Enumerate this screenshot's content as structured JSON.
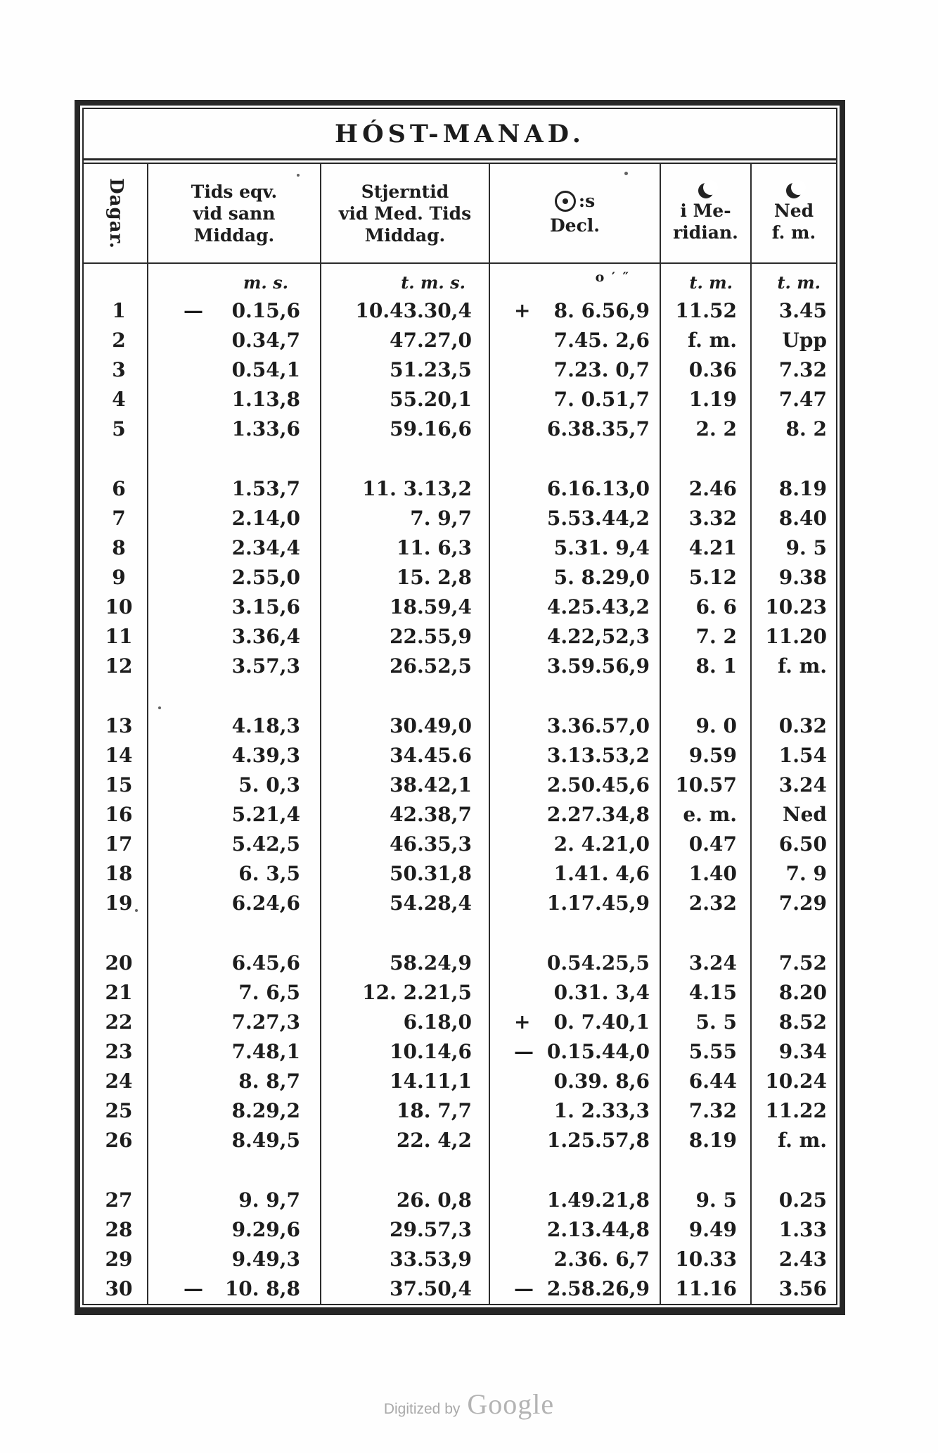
{
  "title": "HÓST-MANAD.",
  "header": {
    "day": "Dagar.",
    "eqv": [
      "Tids eqv.",
      "vid sann",
      "Middag."
    ],
    "st": [
      "Stjerntid",
      "vid Med. Tids",
      "Middag."
    ],
    "decl": {
      "sun_suffix": ":s",
      "label": "Decl."
    },
    "mer": [
      "i Me-",
      "ridian."
    ],
    "ned": [
      "Ned",
      "f. m."
    ]
  },
  "units": {
    "eqv": "m. s.",
    "st": "t. m. s.",
    "decl": "o ′ ″",
    "mer": "t. m.",
    "ned": "t. m."
  },
  "table": {
    "rows": [
      {
        "day": "1",
        "eqv_sign": "—",
        "eqv": "0.15,6",
        "st": "10.43.30,4",
        "decl_sign": "+",
        "decl": "8. 6.56,9",
        "mer": "11.52",
        "ned": "3.45"
      },
      {
        "day": "2",
        "eqv": "0.34,7",
        "st": "47.27,0",
        "decl": "7.45. 2,6",
        "mer": "f. m.",
        "ned": "Upp"
      },
      {
        "day": "3",
        "eqv": "0.54,1",
        "st": "51.23,5",
        "decl": "7.23. 0,7",
        "mer": "0.36",
        "ned": "7.32"
      },
      {
        "day": "4",
        "eqv": "1.13,8",
        "st": "55.20,1",
        "decl": "7. 0.51,7",
        "mer": "1.19",
        "ned": "7.47"
      },
      {
        "day": "5",
        "eqv": "1.33,6",
        "st": "59.16,6",
        "decl": "6.38.35,7",
        "mer": "2. 2",
        "ned": "8. 2"
      },
      {
        "day": "6",
        "gap_before": true,
        "eqv": "1.53,7",
        "st": "11. 3.13,2",
        "decl": "6.16.13,0",
        "mer": "2.46",
        "ned": "8.19"
      },
      {
        "day": "7",
        "eqv": "2.14,0",
        "st": "7. 9,7",
        "decl": "5.53.44,2",
        "mer": "3.32",
        "ned": "8.40"
      },
      {
        "day": "8",
        "eqv": "2.34,4",
        "st": "11. 6,3",
        "decl": "5.31. 9,4",
        "mer": "4.21",
        "ned": "9. 5"
      },
      {
        "day": "9",
        "eqv": "2.55,0",
        "st": "15. 2,8",
        "decl": "5. 8.29,0",
        "mer": "5.12",
        "ned": "9.38"
      },
      {
        "day": "10",
        "eqv": "3.15,6",
        "st": "18.59,4",
        "decl": "4.25.43,2",
        "mer": "6. 6",
        "ned": "10.23"
      },
      {
        "day": "11",
        "eqv": "3.36,4",
        "st": "22.55,9",
        "decl": "4.22,52,3",
        "mer": "7. 2",
        "ned": "11.20"
      },
      {
        "day": "12",
        "eqv": "3.57,3",
        "st": "26.52,5",
        "decl": "3.59.56,9",
        "mer": "8. 1",
        "ned": "f. m."
      },
      {
        "day": "13",
        "gap_before": true,
        "eqv": "4.18,3",
        "st": "30.49,0",
        "decl": "3.36.57,0",
        "mer": "9. 0",
        "ned": "0.32"
      },
      {
        "day": "14",
        "eqv": "4.39,3",
        "st": "34.45.6",
        "decl": "3.13.53,2",
        "mer": "9.59",
        "ned": "1.54"
      },
      {
        "day": "15",
        "eqv": "5. 0,3",
        "st": "38.42,1",
        "decl": "2.50.45,6",
        "mer": "10.57",
        "ned": "3.24"
      },
      {
        "day": "16",
        "eqv": "5.21,4",
        "st": "42.38,7",
        "decl": "2.27.34,8",
        "mer": "e. m.",
        "ned": "Ned"
      },
      {
        "day": "17",
        "eqv": "5.42,5",
        "st": "46.35,3",
        "decl": "2. 4.21,0",
        "mer": "0.47",
        "ned": "6.50"
      },
      {
        "day": "18",
        "eqv": "6. 3,5",
        "st": "50.31,8",
        "decl": "1.41. 4,6",
        "mer": "1.40",
        "ned": "7. 9"
      },
      {
        "day": "19",
        "eqv": "6.24,6",
        "st": "54.28,4",
        "decl": "1.17.45,9",
        "mer": "2.32",
        "ned": "7.29"
      },
      {
        "day": "20",
        "gap_before": true,
        "eqv": "6.45,6",
        "st": "58.24,9",
        "decl": "0.54.25,5",
        "mer": "3.24",
        "ned": "7.52"
      },
      {
        "day": "21",
        "eqv": "7. 6,5",
        "st": "12. 2.21,5",
        "decl": "0.31. 3,4",
        "mer": "4.15",
        "ned": "8.20"
      },
      {
        "day": "22",
        "eqv": "7.27,3",
        "st": "6.18,0",
        "decl_sign": "+",
        "decl": "0. 7.40,1",
        "mer": "5. 5",
        "ned": "8.52"
      },
      {
        "day": "23",
        "eqv": "7.48,1",
        "st": "10.14,6",
        "decl_sign": "—",
        "decl": "0.15.44,0",
        "mer": "5.55",
        "ned": "9.34"
      },
      {
        "day": "24",
        "eqv": "8. 8,7",
        "st": "14.11,1",
        "decl": "0.39. 8,6",
        "mer": "6.44",
        "ned": "10.24"
      },
      {
        "day": "25",
        "eqv": "8.29,2",
        "st": "18. 7,7",
        "decl": "1. 2.33,3",
        "mer": "7.32",
        "ned": "11.22"
      },
      {
        "day": "26",
        "eqv": "8.49,5",
        "st": "22. 4,2",
        "decl": "1.25.57,8",
        "mer": "8.19",
        "ned": "f. m."
      },
      {
        "day": "27",
        "gap_before": true,
        "eqv": "9. 9,7",
        "st": "26. 0,8",
        "decl": "1.49.21,8",
        "mer": "9. 5",
        "ned": "0.25"
      },
      {
        "day": "28",
        "eqv": "9.29,6",
        "st": "29.57,3",
        "decl": "2.13.44,8",
        "mer": "9.49",
        "ned": "1.33"
      },
      {
        "day": "29",
        "eqv": "9.49,3",
        "st": "33.53,9",
        "decl": "2.36. 6,7",
        "mer": "10.33",
        "ned": "2.43"
      },
      {
        "day": "30",
        "eqv_sign": "—",
        "eqv": "10. 8,8",
        "st": "37.50,4",
        "decl_sign": "—",
        "decl": "2.58.26,9",
        "mer": "11.16",
        "ned": "3.56"
      }
    ]
  },
  "footer": {
    "digitized": "Digitized by",
    "google": "Google"
  }
}
